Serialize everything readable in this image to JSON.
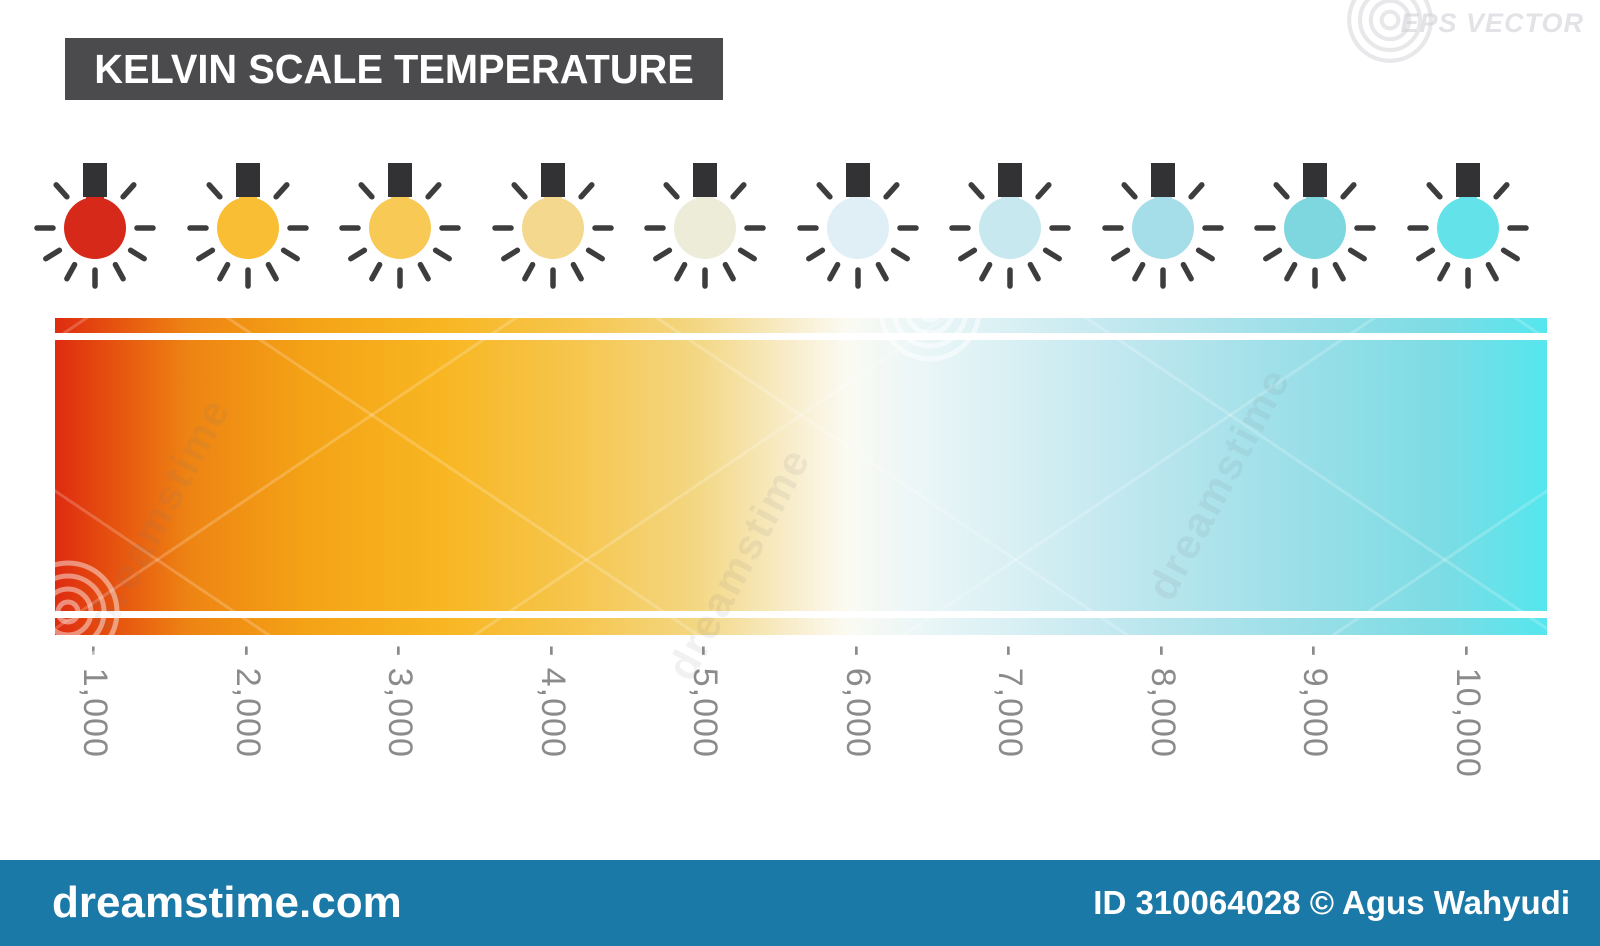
{
  "title": "KELVIN SCALE TEMPERATURE",
  "watermark": {
    "eps_label": "EPS VECTOR",
    "site": "dreamstime.com",
    "credit": "ID 310064028 © Agus Wahyudi",
    "diagonal_text": "dreamstime",
    "footer_color": "#1b79a8"
  },
  "colors": {
    "title_box": "#4b4b4d",
    "tick_text": "#8b8b8b",
    "bulb_cap": "#323234",
    "bulb_rays": "#3d3d3d",
    "bar_divider": "#ffffff"
  },
  "scale": {
    "unit": "Kelvin",
    "tick_labels": [
      "- 1,000",
      "- 2,000",
      "- 3,000",
      "- 4,000",
      "- 5,000",
      "- 6,000",
      "- 7,000",
      "- 8,000",
      "- 9,000",
      "- 10,000"
    ],
    "tick_values": [
      1000,
      2000,
      3000,
      4000,
      5000,
      6000,
      7000,
      8000,
      9000,
      10000
    ],
    "gradient_stops": [
      {
        "pos": 0,
        "color": "#de2b10"
      },
      {
        "pos": 3,
        "color": "#e4490f"
      },
      {
        "pos": 9,
        "color": "#ee8413"
      },
      {
        "pos": 17,
        "color": "#f4a316"
      },
      {
        "pos": 26,
        "color": "#f8b622"
      },
      {
        "pos": 35,
        "color": "#f6c64e"
      },
      {
        "pos": 43,
        "color": "#f3d783"
      },
      {
        "pos": 49,
        "color": "#f8ecc8"
      },
      {
        "pos": 53,
        "color": "#fbfaf2"
      },
      {
        "pos": 57,
        "color": "#eef7f7"
      },
      {
        "pos": 64,
        "color": "#d9f0f4"
      },
      {
        "pos": 73,
        "color": "#bce6ee"
      },
      {
        "pos": 83,
        "color": "#9cdfe8"
      },
      {
        "pos": 93,
        "color": "#7cdce4"
      },
      {
        "pos": 100,
        "color": "#55e6ee"
      }
    ]
  },
  "bulbs": [
    {
      "kelvin": 1000,
      "color": "#d7291a"
    },
    {
      "kelvin": 2000,
      "color": "#f9be33"
    },
    {
      "kelvin": 3000,
      "color": "#f8ca55"
    },
    {
      "kelvin": 4000,
      "color": "#f3d88d"
    },
    {
      "kelvin": 5000,
      "color": "#ececd9"
    },
    {
      "kelvin": 6000,
      "color": "#e0eff6"
    },
    {
      "kelvin": 7000,
      "color": "#c8e8f0"
    },
    {
      "kelvin": 8000,
      "color": "#a5dde9"
    },
    {
      "kelvin": 9000,
      "color": "#7ed6de"
    },
    {
      "kelvin": 10000,
      "color": "#63e3e9"
    }
  ]
}
